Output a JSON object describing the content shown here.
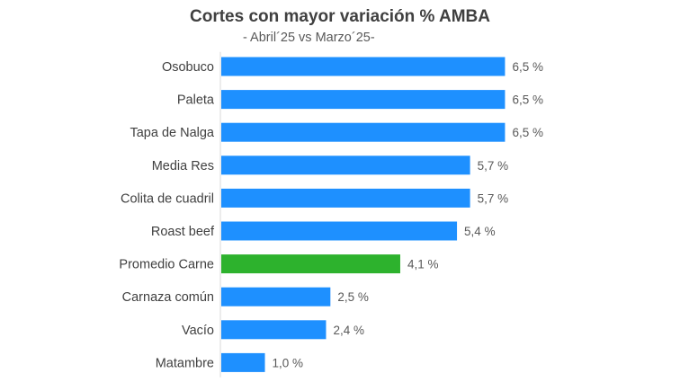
{
  "chart_data": {
    "type": "bar",
    "orientation": "horizontal",
    "title": "Cortes con mayor variación % AMBA",
    "subtitle": "- Abril´25 vs Marzo´25-",
    "xlabel": "",
    "ylabel": "",
    "xlim": [
      0,
      6.8
    ],
    "grid": false,
    "legend": "none",
    "categories": [
      "Osobuco",
      "Paleta",
      "Tapa de Nalga",
      "Media Res",
      "Colita de cuadril",
      "Roast beef",
      "Promedio Carne",
      "Carnaza común",
      "Vacío",
      "Matambre"
    ],
    "values": [
      6.5,
      6.5,
      6.5,
      5.7,
      5.7,
      5.4,
      4.1,
      2.5,
      2.4,
      1.0
    ],
    "value_labels": [
      "6,5 %",
      "6,5 %",
      "6,5 %",
      "5,7 %",
      "5,7 %",
      "5,4 %",
      "4,1 %",
      "2,5 %",
      "2,4 %",
      "1,0 %"
    ],
    "highlight_category": "Promedio Carne",
    "colors": {
      "bar": "#1E90FF",
      "highlight": "#2DB22D",
      "category_label": "#404040",
      "value_label": "#595959",
      "axis": "#D9D9D9"
    }
  }
}
